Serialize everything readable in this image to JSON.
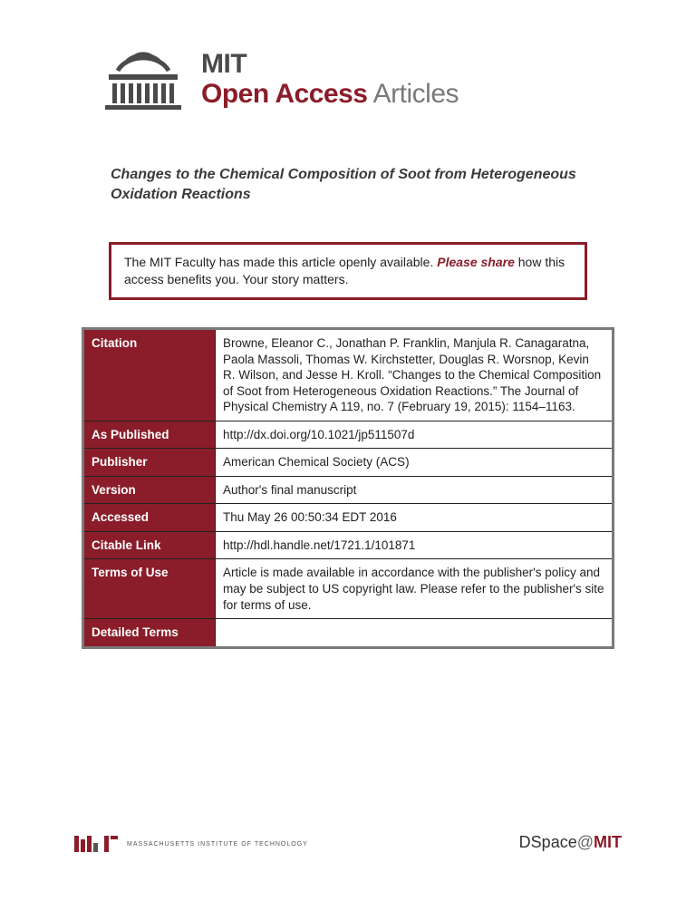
{
  "logo": {
    "line1": "MIT",
    "line2_red": "Open Access",
    "line2_gray": " Articles"
  },
  "title": "Changes to the Chemical Composition of Soot from Heterogeneous Oxidation Reactions",
  "share_box": {
    "text_before": "The MIT Faculty has made this article openly available. ",
    "emph": "Please share",
    "text_after": " how this access benefits you.  Your story matters."
  },
  "metadata": {
    "rows": [
      {
        "label": "Citation",
        "value": "Browne, Eleanor C., Jonathan P. Franklin, Manjula R. Canagaratna, Paola Massoli, Thomas W. Kirchstetter, Douglas R. Worsnop, Kevin R. Wilson, and Jesse H. Kroll. “Changes to the Chemical Composition of Soot from Heterogeneous Oxidation Reactions.” The Journal of Physical Chemistry A 119, no. 7 (February 19, 2015): 1154–1163."
      },
      {
        "label": "As Published",
        "value": "http://dx.doi.org/10.1021/jp511507d"
      },
      {
        "label": "Publisher",
        "value": "American Chemical Society (ACS)"
      },
      {
        "label": "Version",
        "value": "Author's final manuscript"
      },
      {
        "label": "Accessed",
        "value": "Thu May 26 00:50:34 EDT 2016"
      },
      {
        "label": "Citable Link",
        "value": "http://hdl.handle.net/1721.1/101871"
      },
      {
        "label": "Terms of Use",
        "value": "Article is made available in accordance with the publisher's policy and may be subject to US copyright law. Please refer to the publisher's site for terms of use."
      },
      {
        "label": "Detailed Terms",
        "value": ""
      }
    ]
  },
  "footer": {
    "institute": "Massachusetts Institute of Technology",
    "dspace_prefix": "DSpace",
    "dspace_at": "@",
    "dspace_mit": "MIT"
  },
  "colors": {
    "mit_red": "#8a1d29",
    "border_gray": "#7a7a7a",
    "text_dark": "#222222",
    "logo_gray": "#4a4a4a"
  }
}
